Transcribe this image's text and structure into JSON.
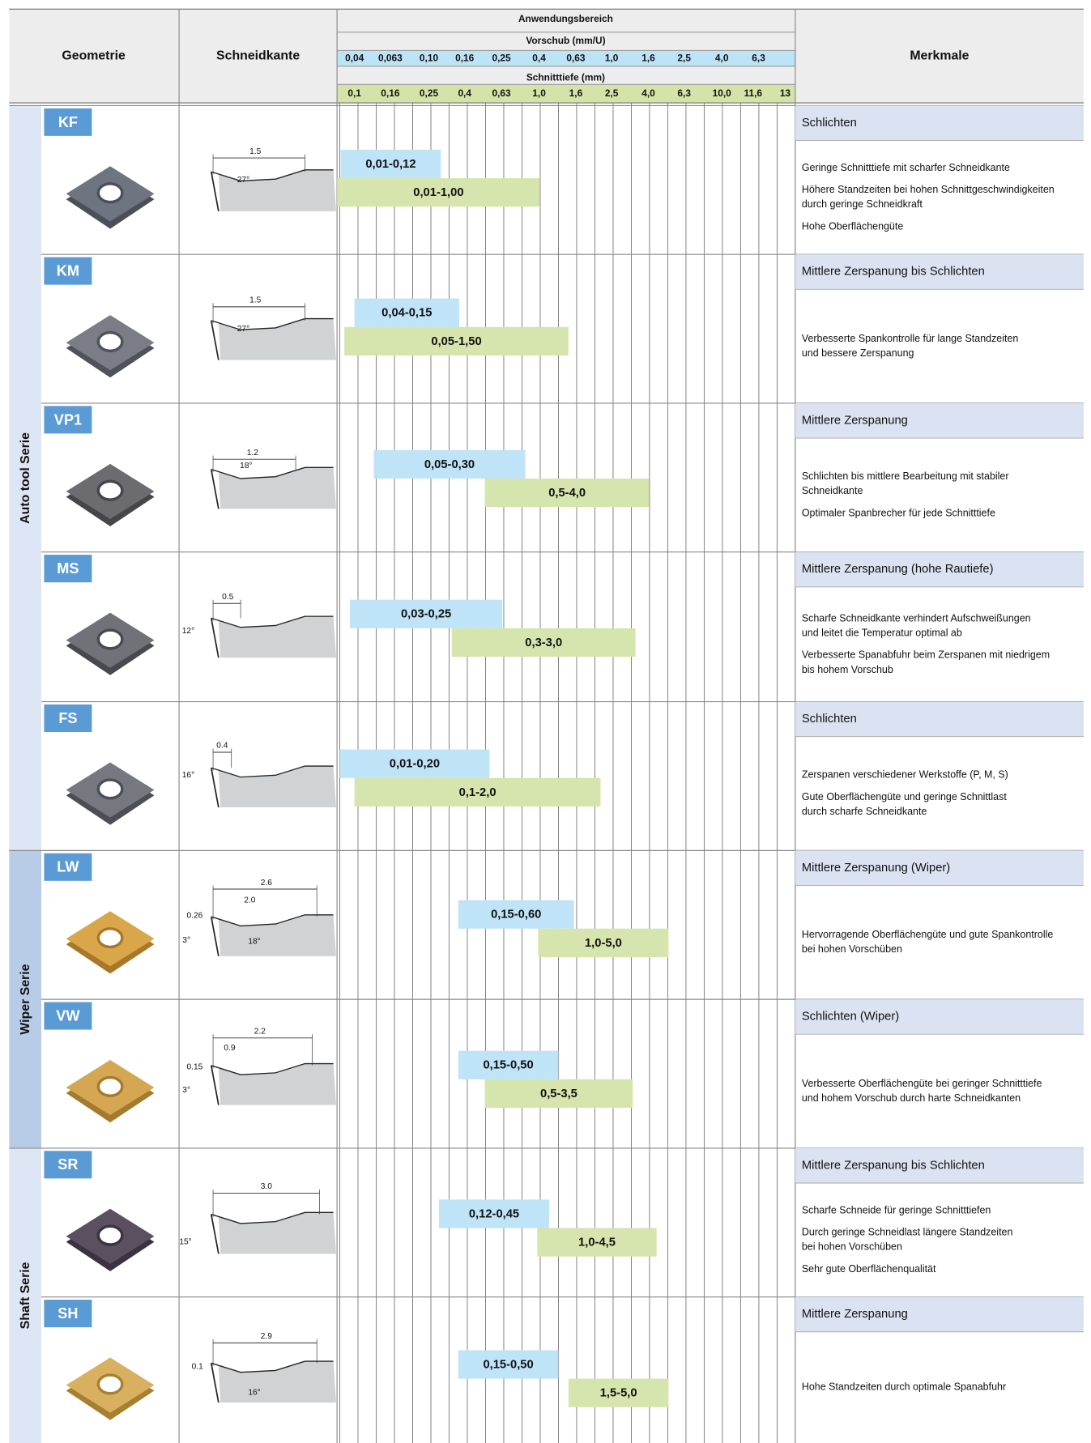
{
  "header": {
    "geometrie": "Geometrie",
    "schneidkante": "Schneidkante",
    "anwendungsbereich": "Anwendungsbereich",
    "vorschub": "Vorschub (mm/U)",
    "schnitttiefe": "Schnitttiefe (mm)",
    "merkmale": "Merkmale",
    "vorschub_ticks": [
      "0,04",
      "0,063",
      "0,10",
      "0,16",
      "0,25",
      "0,4",
      "0,63",
      "1,0",
      "1,6",
      "2,5",
      "4,0",
      "6,3"
    ],
    "schnitttiefe_ticks": [
      "0,1",
      "0,16",
      "0,25",
      "0,4",
      "0,63",
      "1,0",
      "1,6",
      "2,5",
      "4,0",
      "6,3",
      "10,0",
      "11,6",
      "13"
    ]
  },
  "groups": [
    {
      "label": "Auto tool Serie"
    },
    {
      "label": "Wiper Serie"
    },
    {
      "label": "Shaft Serie"
    }
  ],
  "rows": [
    {
      "geometry": "KF",
      "dims": [
        "1.5",
        "27°"
      ],
      "vorschub": "0,01-0,12",
      "schnitttiefe": "0,01-1,00",
      "title": "Schlichten",
      "notes": [
        [
          "Geringe Schnitttiefe mit scharfer Schneidkante"
        ],
        [
          "Höhere Standzeiten bei hohen Schnittgeschwindigkeiten",
          "durch geringe Schneidkraft"
        ],
        [
          "Hohe Oberflächengüte"
        ]
      ]
    },
    {
      "geometry": "KM",
      "dims": [
        "1.5",
        "27°"
      ],
      "vorschub": "0,04-0,15",
      "schnitttiefe": "0,05-1,50",
      "title": "Mittlere Zerspanung bis Schlichten",
      "notes": [
        [
          "Verbesserte Spankontrolle für lange Standzeiten",
          "und bessere Zerspanung"
        ]
      ]
    },
    {
      "geometry": "VP1",
      "dims": [
        "1.2",
        "18°"
      ],
      "vorschub": "0,05-0,30",
      "schnitttiefe": "0,5-4,0",
      "title": "Mittlere Zerspanung",
      "notes": [
        [
          "Schlichten bis mittlere Bearbeitung mit stabiler",
          "Schneidkante"
        ],
        [
          "Optimaler Spanbrecher für jede Schnitttiefe"
        ]
      ]
    },
    {
      "geometry": "MS",
      "dims": [
        "0.5",
        "12°"
      ],
      "vorschub": "0,03-0,25",
      "schnitttiefe": "0,3-3,0",
      "title": "Mittlere Zerspanung (hohe Rautiefe)",
      "notes": [
        [
          "Scharfe Schneidkante verhindert Aufschweißungen",
          "und leitet die Temperatur optimal ab"
        ],
        [
          "Verbesserte Spanabfuhr beim Zerspanen mit niedrigem",
          "bis hohem Vorschub"
        ]
      ]
    },
    {
      "geometry": "FS",
      "dims": [
        "0.4",
        "16°"
      ],
      "vorschub": "0,01-0,20",
      "schnitttiefe": "0,1-2,0",
      "title": "Schlichten",
      "notes": [
        [
          "Zerspanen verschiedener Werkstoffe (P, M, S)"
        ],
        [
          "Gute Oberflächengüte und geringe Schnittlast",
          "durch scharfe Schneidkante"
        ]
      ]
    },
    {
      "geometry": "LW",
      "dims": [
        "2.6",
        "2.0",
        "0.26",
        "3°",
        "18°"
      ],
      "vorschub": "0,15-0,60",
      "schnitttiefe": "1,0-5,0",
      "title": "Mittlere Zerspanung (Wiper)",
      "notes": [
        [
          "Hervorragende Oberflächengüte und gute Spankontrolle",
          "bei hohen Vorschüben"
        ]
      ]
    },
    {
      "geometry": "VW",
      "dims": [
        "2.2",
        "0.9",
        "0.15",
        "3°"
      ],
      "vorschub": "0,15-0,50",
      "schnitttiefe": "0,5-3,5",
      "title": "Schlichten (Wiper)",
      "notes": [
        [
          "Verbesserte Oberflächengüte bei geringer Schnitttiefe",
          "und hohem Vorschub durch harte Schneidkanten"
        ]
      ]
    },
    {
      "geometry": "SR",
      "dims": [
        "3.0",
        "15°"
      ],
      "vorschub": "0,12-0,45",
      "schnitttiefe": "1,0-4,5",
      "title": "Mittlere Zerspanung bis Schlichten",
      "notes": [
        [
          "Scharfe Schneide für geringe Schnitttiefen"
        ],
        [
          "Durch geringe Schneidlast längere Standzeiten",
          "bei hohen Vorschüben"
        ],
        [
          "Sehr gute Oberflächenqualität"
        ]
      ]
    },
    {
      "geometry": "SH",
      "dims": [
        "2.9",
        "0.1",
        "16°"
      ],
      "vorschub": "0,15-0,50",
      "schnitttiefe": "1,5-5,0",
      "title": "Mittlere Zerspanung",
      "notes": [
        [
          "Hohe Standzeiten durch optimale Spanabfuhr"
        ]
      ]
    }
  ]
}
